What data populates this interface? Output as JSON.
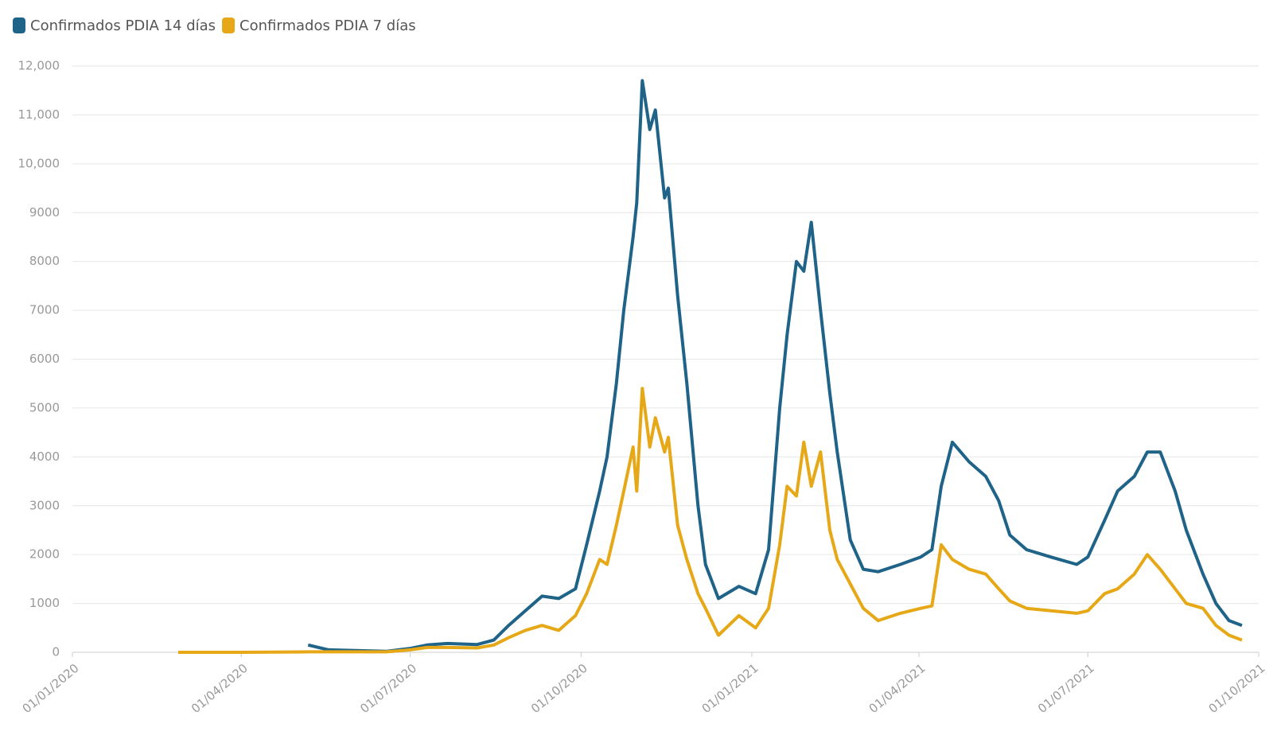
{
  "chart_data": {
    "type": "line",
    "x": [
      "27/02/2020",
      "01/04/2020",
      "07/05/2020",
      "18/05/2020",
      "18/06/2020",
      "01/07/2020",
      "10/07/2020",
      "21/07/2020",
      "06/08/2020",
      "15/08/2020",
      "23/08/2020",
      "01/09/2020",
      "10/09/2020",
      "19/09/2020",
      "28/09/2020",
      "04/10/2020",
      "11/10/2020",
      "15/10/2020",
      "20/10/2020",
      "24/10/2020",
      "29/10/2020",
      "31/10/2020",
      "03/11/2020",
      "07/11/2020",
      "10/11/2020",
      "15/11/2020",
      "17/11/2020",
      "22/11/2020",
      "27/11/2020",
      "03/12/2020",
      "07/12/2020",
      "14/12/2020",
      "25/12/2020",
      "03/01/2021",
      "10/01/2021",
      "16/01/2021",
      "20/01/2021",
      "25/01/2021",
      "29/01/2021",
      "02/02/2021",
      "07/02/2021",
      "12/02/2021",
      "16/02/2021",
      "23/02/2021",
      "02/03/2021",
      "10/03/2021",
      "22/03/2021",
      "02/04/2021",
      "08/04/2021",
      "13/04/2021",
      "19/04/2021",
      "28/04/2021",
      "07/05/2021",
      "14/05/2021",
      "20/05/2021",
      "29/05/2021",
      "11/06/2021",
      "25/06/2021",
      "01/07/2021",
      "10/07/2021",
      "17/07/2021",
      "26/07/2021",
      "02/08/2021",
      "09/08/2021",
      "17/08/2021",
      "23/08/2021",
      "01/09/2021",
      "08/09/2021",
      "15/09/2021",
      "22/09/2021"
    ],
    "series": [
      {
        "name": "Confirmados PDIA 14 días",
        "color": "#1f6388",
        "values": [
          null,
          null,
          150,
          50,
          20,
          80,
          150,
          180,
          160,
          250,
          550,
          850,
          1150,
          1100,
          1300,
          2200,
          3300,
          4000,
          5500,
          7000,
          8500,
          9200,
          11700,
          10700,
          11100,
          9300,
          9500,
          7300,
          5500,
          3000,
          1800,
          1100,
          1350,
          1200,
          2100,
          5000,
          6500,
          8000,
          7800,
          8800,
          7000,
          5300,
          4100,
          2300,
          1700,
          1650,
          1800,
          1950,
          2100,
          3400,
          4300,
          3900,
          3600,
          3100,
          2400,
          2100,
          1950,
          1800,
          1950,
          2700,
          3300,
          3600,
          4100,
          4100,
          3300,
          2500,
          1600,
          1000,
          650,
          550
        ]
      },
      {
        "name": "Confirmados PDIA 7 días",
        "color": "#e6a817",
        "values": [
          0,
          0,
          10,
          10,
          10,
          50,
          100,
          100,
          90,
          150,
          300,
          450,
          550,
          450,
          750,
          1200,
          1900,
          1800,
          2600,
          3300,
          4200,
          3300,
          5400,
          4200,
          4800,
          4100,
          4400,
          2600,
          1900,
          1200,
          900,
          350,
          750,
          500,
          900,
          2200,
          3400,
          3200,
          4300,
          3400,
          4100,
          2500,
          1900,
          1400,
          900,
          650,
          800,
          900,
          950,
          2200,
          1900,
          1700,
          1600,
          1300,
          1050,
          900,
          850,
          800,
          850,
          1200,
          1300,
          1600,
          2000,
          1700,
          1300,
          1000,
          900,
          550,
          350,
          250
        ]
      }
    ],
    "xlim": [
      "01/01/2020",
      "01/10/2021"
    ],
    "xticks": [
      "01/01/2020",
      "01/04/2020",
      "01/07/2020",
      "01/10/2020",
      "01/01/2021",
      "01/04/2021",
      "01/07/2021",
      "01/10/2021"
    ],
    "ylim": [
      0,
      12000
    ],
    "yticks": [
      0,
      1000,
      2000,
      3000,
      4000,
      5000,
      6000,
      7000,
      8000,
      9000,
      {
        "value": 10000,
        "label": "10,000"
      },
      {
        "value": 11000,
        "label": "11,000"
      },
      {
        "value": 12000,
        "label": "12,000"
      }
    ],
    "grid": true
  }
}
